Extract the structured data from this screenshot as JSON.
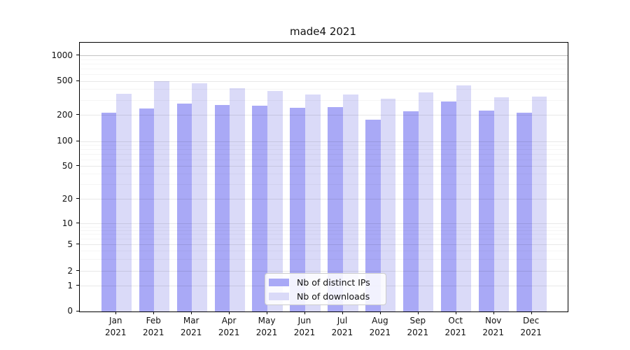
{
  "title": "made4 2021",
  "legend": {
    "items": [
      {
        "label": "Nb of distinct IPs",
        "color": "#a9a9f6",
        "key": "distinct-ips"
      },
      {
        "label": "Nb of downloads",
        "color": "#dadaf8",
        "key": "downloads"
      }
    ],
    "position": "inside-bottom-center"
  },
  "x_axis": {
    "year": "2021"
  },
  "y_axis": {
    "scale": "symlog",
    "tick_labels": [
      "0",
      "1",
      "2",
      "5",
      "10",
      "20",
      "50",
      "100",
      "200",
      "500",
      "1000"
    ]
  },
  "chart_data": {
    "type": "bar",
    "title": "made4 2021",
    "categories": [
      "Jan",
      "Feb",
      "Mar",
      "Apr",
      "May",
      "Jun",
      "Jul",
      "Aug",
      "Sep",
      "Oct",
      "Nov",
      "Dec"
    ],
    "category_year": "2021",
    "series": [
      {
        "name": "Nb of distinct IPs",
        "key": "distinct-ips",
        "color": "#a9a9f6",
        "values": [
          211,
          238,
          270,
          261,
          257,
          243,
          244,
          176,
          220,
          287,
          226,
          210
        ]
      },
      {
        "name": "Nb of downloads",
        "key": "downloads",
        "color": "#dadaf8",
        "values": [
          355,
          494,
          465,
          410,
          381,
          347,
          343,
          311,
          363,
          440,
          318,
          327
        ]
      }
    ],
    "xlabel": "",
    "ylabel": "",
    "yscale": "symlog",
    "yticks": [
      0,
      1,
      2,
      5,
      10,
      20,
      50,
      100,
      200,
      500,
      1000
    ],
    "yticks_minor": [
      3,
      4,
      6,
      7,
      8,
      9,
      30,
      40,
      60,
      70,
      80,
      90,
      300,
      400,
      600,
      700,
      800,
      900
    ],
    "ylim": [
      0,
      1400
    ],
    "grid": true,
    "legend_position": "lower center"
  }
}
